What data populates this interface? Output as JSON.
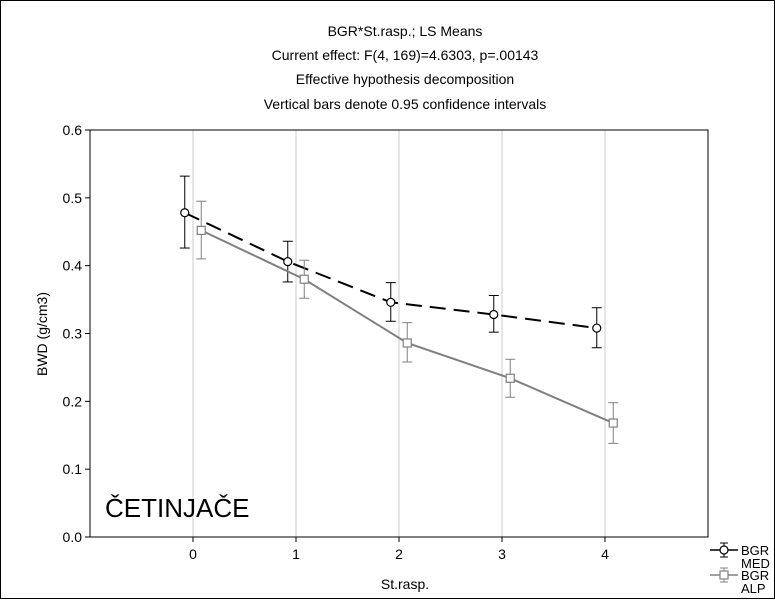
{
  "chart_data": {
    "type": "line",
    "title_lines": [
      "BGR*St.rasp.; LS Means",
      "Current effect: F(4, 169)=4.6303, p=.00143",
      "Effective hypothesis decomposition",
      "Vertical bars denote 0.95 confidence intervals"
    ],
    "xlabel": "St.rasp.",
    "ylabel": "BWD (g/cm3)",
    "annotation": "ČETINJAČE",
    "x_categories": [
      "0",
      "1",
      "2",
      "3",
      "4"
    ],
    "xlim": [
      -1,
      5
    ],
    "ylim": [
      0.0,
      0.6
    ],
    "y_ticks": [
      "0.0",
      "0.1",
      "0.2",
      "0.3",
      "0.4",
      "0.5",
      "0.6"
    ],
    "grid": "vertical",
    "legend_position": "bottom-right, partially cut off",
    "series": [
      {
        "name_lines": [
          "BGR",
          "MED"
        ],
        "color": "#000000",
        "line_style": "dashed",
        "marker": "circle",
        "x_offset": -0.08,
        "values": [
          0.478,
          0.406,
          0.346,
          0.328,
          0.308
        ],
        "ci_low": [
          0.426,
          0.376,
          0.318,
          0.302,
          0.279
        ],
        "ci_high": [
          0.532,
          0.436,
          0.375,
          0.356,
          0.338
        ]
      },
      {
        "name_lines": [
          "BGR",
          "ALP"
        ],
        "color": "#808080",
        "line_style": "solid",
        "marker": "square",
        "x_offset": 0.08,
        "values": [
          0.452,
          0.38,
          0.286,
          0.234,
          0.168
        ],
        "ci_low": [
          0.41,
          0.352,
          0.258,
          0.206,
          0.138
        ],
        "ci_high": [
          0.495,
          0.408,
          0.316,
          0.262,
          0.198
        ]
      }
    ]
  }
}
